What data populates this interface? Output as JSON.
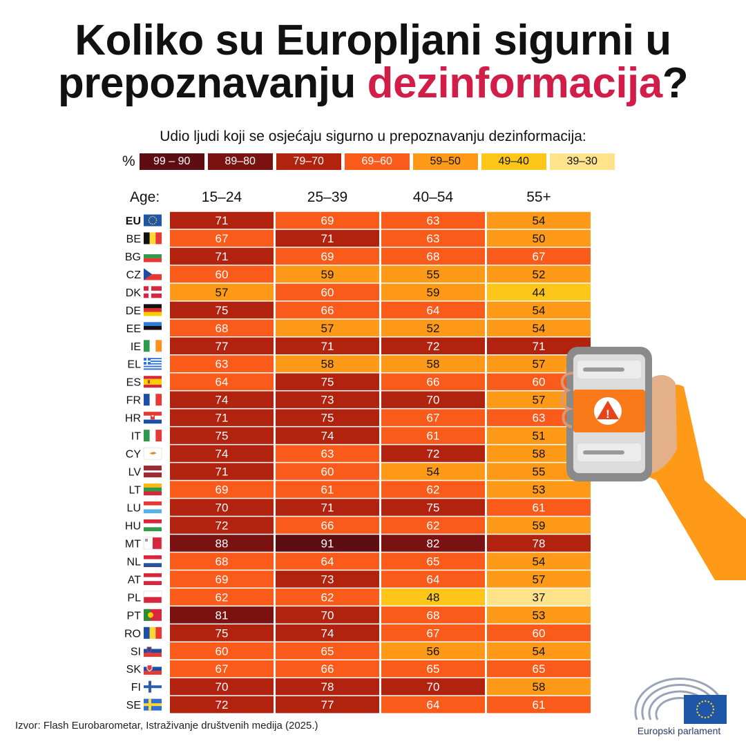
{
  "title": {
    "line1": "Koliko su Europljani sigurni u",
    "line2_plain": "prepoznavanju ",
    "line2_accent": "dezinformacija",
    "line2_end": "?"
  },
  "subtitle": "Udio ljudi koji se osjećaju sigurno u prepoznavanju dezinformacija:",
  "legend": {
    "prefix": "%",
    "items": [
      {
        "label": "99 – 90",
        "color": "#5e0e12",
        "text_color": "#ffffff"
      },
      {
        "label": "89–80",
        "color": "#7a1212",
        "text_color": "#ffffff"
      },
      {
        "label": "79–70",
        "color": "#b1230f",
        "text_color": "#ffffff"
      },
      {
        "label": "69–60",
        "color": "#fa5a1a",
        "text_color": "#ffffff"
      },
      {
        "label": "59–50",
        "color": "#fe9a17",
        "text_color": "#111111"
      },
      {
        "label": "49–40",
        "color": "#ffc61a",
        "text_color": "#111111"
      },
      {
        "label": "39–30",
        "color": "#ffe38a",
        "text_color": "#111111"
      }
    ]
  },
  "age_label": "Age:",
  "chart_data": {
    "type": "heatmap",
    "title": "Koliko su Europljani sigurni u prepoznavanju dezinformacija?",
    "subtitle": "Udio ljudi koji se osjećaju sigurno u prepoznavanju dezinformacija:",
    "columns": [
      "15–24",
      "25–39",
      "40–54",
      "55+"
    ],
    "rows": [
      {
        "code": "EU",
        "flag": "eu-flag",
        "values": [
          71,
          69,
          63,
          54
        ]
      },
      {
        "code": "BE",
        "flag": "belgium-flag",
        "values": [
          67,
          71,
          63,
          50
        ]
      },
      {
        "code": "BG",
        "flag": "bulgaria-flag",
        "values": [
          71,
          69,
          68,
          67
        ]
      },
      {
        "code": "CZ",
        "flag": "czechia-flag",
        "values": [
          60,
          59,
          55,
          52
        ]
      },
      {
        "code": "DK",
        "flag": "denmark-flag",
        "values": [
          57,
          60,
          59,
          44
        ]
      },
      {
        "code": "DE",
        "flag": "germany-flag",
        "values": [
          75,
          66,
          64,
          54
        ]
      },
      {
        "code": "EE",
        "flag": "estonia-flag",
        "values": [
          68,
          57,
          52,
          54
        ]
      },
      {
        "code": "IE",
        "flag": "ireland-flag",
        "values": [
          77,
          71,
          72,
          71
        ]
      },
      {
        "code": "EL",
        "flag": "greece-flag",
        "values": [
          63,
          58,
          58,
          57
        ]
      },
      {
        "code": "ES",
        "flag": "spain-flag",
        "values": [
          64,
          75,
          66,
          60
        ]
      },
      {
        "code": "FR",
        "flag": "france-flag",
        "values": [
          74,
          73,
          70,
          57
        ]
      },
      {
        "code": "HR",
        "flag": "croatia-flag",
        "values": [
          71,
          75,
          67,
          63
        ]
      },
      {
        "code": "IT",
        "flag": "italy-flag",
        "values": [
          75,
          74,
          61,
          51
        ]
      },
      {
        "code": "CY",
        "flag": "cyprus-flag",
        "values": [
          74,
          63,
          72,
          58
        ]
      },
      {
        "code": "LV",
        "flag": "latvia-flag",
        "values": [
          71,
          60,
          54,
          55
        ]
      },
      {
        "code": "LT",
        "flag": "lithuania-flag",
        "values": [
          69,
          61,
          62,
          53
        ]
      },
      {
        "code": "LU",
        "flag": "luxembourg-flag",
        "values": [
          70,
          71,
          75,
          61
        ]
      },
      {
        "code": "HU",
        "flag": "hungary-flag",
        "values": [
          72,
          66,
          62,
          59
        ]
      },
      {
        "code": "MT",
        "flag": "malta-flag",
        "values": [
          88,
          91,
          82,
          78
        ]
      },
      {
        "code": "NL",
        "flag": "netherlands-flag",
        "values": [
          68,
          64,
          65,
          54
        ]
      },
      {
        "code": "AT",
        "flag": "austria-flag",
        "values": [
          69,
          73,
          64,
          57
        ]
      },
      {
        "code": "PL",
        "flag": "poland-flag",
        "values": [
          62,
          62,
          48,
          37
        ]
      },
      {
        "code": "PT",
        "flag": "portugal-flag",
        "values": [
          81,
          70,
          68,
          53
        ]
      },
      {
        "code": "RO",
        "flag": "romania-flag",
        "values": [
          75,
          74,
          67,
          60
        ]
      },
      {
        "code": "SI",
        "flag": "slovenia-flag",
        "values": [
          60,
          65,
          56,
          54
        ]
      },
      {
        "code": "SK",
        "flag": "slovakia-flag",
        "values": [
          67,
          66,
          65,
          65
        ]
      },
      {
        "code": "FI",
        "flag": "finland-flag",
        "values": [
          70,
          78,
          70,
          58
        ]
      },
      {
        "code": "SE",
        "flag": "sweden-flag",
        "values": [
          72,
          77,
          64,
          61
        ]
      }
    ],
    "bins": [
      {
        "min": 90,
        "max": 99,
        "color": "#5e0e12"
      },
      {
        "min": 80,
        "max": 89,
        "color": "#7a1212"
      },
      {
        "min": 70,
        "max": 79,
        "color": "#b1230f"
      },
      {
        "min": 60,
        "max": 69,
        "color": "#fa5a1a"
      },
      {
        "min": 50,
        "max": 59,
        "color": "#fe9a17"
      },
      {
        "min": 40,
        "max": 49,
        "color": "#ffc61a"
      },
      {
        "min": 30,
        "max": 39,
        "color": "#ffe38a"
      }
    ]
  },
  "source": "Izvor: Flash Eurobarometar, Istraživanje društvenih medija (2025.)",
  "logo": {
    "name": "Europski parlament",
    "flag_color": "#1f56a8",
    "star_color": "#ffd21f"
  },
  "illustration": {
    "icon": "phone-warning-icon",
    "alert_symbol": "!"
  }
}
